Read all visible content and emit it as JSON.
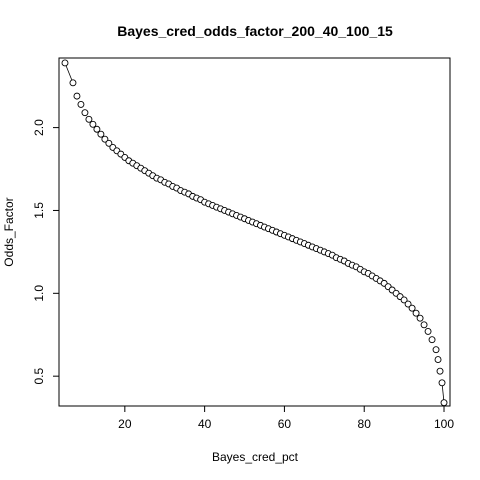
{
  "chart_data": {
    "type": "scatter",
    "title": "Bayes_cred_odds_factor_200_40_100_15",
    "xlabel": "Bayes_cred_pct",
    "ylabel": "Odds_Factor",
    "xlim": [
      3.5,
      101.5
    ],
    "ylim": [
      0.32,
      2.42
    ],
    "xticks": [
      20,
      40,
      60,
      80,
      100
    ],
    "yticks": [
      0.5,
      1.0,
      1.5,
      2.0
    ],
    "xtick_labels": [
      "20",
      "40",
      "60",
      "80",
      "100"
    ],
    "ytick_labels": [
      "0.5",
      "1.0",
      "1.5",
      "2.0"
    ],
    "grid": false,
    "marker": "open-circle",
    "connect_first_and_last_points": true,
    "points": [
      {
        "x": 5,
        "y": 2.39
      },
      {
        "x": 7,
        "y": 2.27
      },
      {
        "x": 8,
        "y": 2.19
      },
      {
        "x": 9,
        "y": 2.14
      },
      {
        "x": 10,
        "y": 2.09
      },
      {
        "x": 11,
        "y": 2.05
      },
      {
        "x": 12,
        "y": 2.02
      },
      {
        "x": 13,
        "y": 1.99
      },
      {
        "x": 14,
        "y": 1.96
      },
      {
        "x": 15,
        "y": 1.93
      },
      {
        "x": 16,
        "y": 1.905
      },
      {
        "x": 17,
        "y": 1.88
      },
      {
        "x": 18,
        "y": 1.86
      },
      {
        "x": 19,
        "y": 1.84
      },
      {
        "x": 20,
        "y": 1.82
      },
      {
        "x": 21,
        "y": 1.8
      },
      {
        "x": 22,
        "y": 1.785
      },
      {
        "x": 23,
        "y": 1.77
      },
      {
        "x": 24,
        "y": 1.755
      },
      {
        "x": 25,
        "y": 1.74
      },
      {
        "x": 26,
        "y": 1.725
      },
      {
        "x": 27,
        "y": 1.71
      },
      {
        "x": 28,
        "y": 1.695
      },
      {
        "x": 29,
        "y": 1.685
      },
      {
        "x": 30,
        "y": 1.67
      },
      {
        "x": 31,
        "y": 1.66
      },
      {
        "x": 32,
        "y": 1.645
      },
      {
        "x": 33,
        "y": 1.635
      },
      {
        "x": 34,
        "y": 1.62
      },
      {
        "x": 35,
        "y": 1.61
      },
      {
        "x": 36,
        "y": 1.6
      },
      {
        "x": 37,
        "y": 1.585
      },
      {
        "x": 38,
        "y": 1.575
      },
      {
        "x": 39,
        "y": 1.565
      },
      {
        "x": 40,
        "y": 1.55
      },
      {
        "x": 41,
        "y": 1.54
      },
      {
        "x": 42,
        "y": 1.53
      },
      {
        "x": 43,
        "y": 1.52
      },
      {
        "x": 44,
        "y": 1.51
      },
      {
        "x": 45,
        "y": 1.5
      },
      {
        "x": 46,
        "y": 1.49
      },
      {
        "x": 47,
        "y": 1.48
      },
      {
        "x": 48,
        "y": 1.47
      },
      {
        "x": 49,
        "y": 1.46
      },
      {
        "x": 50,
        "y": 1.45
      },
      {
        "x": 51,
        "y": 1.44
      },
      {
        "x": 52,
        "y": 1.43
      },
      {
        "x": 53,
        "y": 1.42
      },
      {
        "x": 54,
        "y": 1.41
      },
      {
        "x": 55,
        "y": 1.4
      },
      {
        "x": 56,
        "y": 1.39
      },
      {
        "x": 57,
        "y": 1.38
      },
      {
        "x": 58,
        "y": 1.37
      },
      {
        "x": 59,
        "y": 1.36
      },
      {
        "x": 60,
        "y": 1.35
      },
      {
        "x": 61,
        "y": 1.34
      },
      {
        "x": 62,
        "y": 1.33
      },
      {
        "x": 63,
        "y": 1.32
      },
      {
        "x": 64,
        "y": 1.31
      },
      {
        "x": 65,
        "y": 1.3
      },
      {
        "x": 66,
        "y": 1.29
      },
      {
        "x": 67,
        "y": 1.28
      },
      {
        "x": 68,
        "y": 1.27
      },
      {
        "x": 69,
        "y": 1.26
      },
      {
        "x": 70,
        "y": 1.25
      },
      {
        "x": 71,
        "y": 1.24
      },
      {
        "x": 72,
        "y": 1.23
      },
      {
        "x": 73,
        "y": 1.215
      },
      {
        "x": 74,
        "y": 1.205
      },
      {
        "x": 75,
        "y": 1.195
      },
      {
        "x": 76,
        "y": 1.18
      },
      {
        "x": 77,
        "y": 1.17
      },
      {
        "x": 78,
        "y": 1.16
      },
      {
        "x": 79,
        "y": 1.145
      },
      {
        "x": 80,
        "y": 1.13
      },
      {
        "x": 81,
        "y": 1.12
      },
      {
        "x": 82,
        "y": 1.105
      },
      {
        "x": 83,
        "y": 1.09
      },
      {
        "x": 84,
        "y": 1.075
      },
      {
        "x": 85,
        "y": 1.06
      },
      {
        "x": 86,
        "y": 1.04
      },
      {
        "x": 87,
        "y": 1.02
      },
      {
        "x": 88,
        "y": 1.0
      },
      {
        "x": 89,
        "y": 0.98
      },
      {
        "x": 90,
        "y": 0.96
      },
      {
        "x": 91,
        "y": 0.935
      },
      {
        "x": 92,
        "y": 0.91
      },
      {
        "x": 93,
        "y": 0.88
      },
      {
        "x": 94,
        "y": 0.85
      },
      {
        "x": 95,
        "y": 0.81
      },
      {
        "x": 96,
        "y": 0.77
      },
      {
        "x": 97,
        "y": 0.72
      },
      {
        "x": 98,
        "y": 0.66
      },
      {
        "x": 98.5,
        "y": 0.6
      },
      {
        "x": 99,
        "y": 0.53
      },
      {
        "x": 99.5,
        "y": 0.46
      },
      {
        "x": 100,
        "y": 0.34
      }
    ]
  }
}
